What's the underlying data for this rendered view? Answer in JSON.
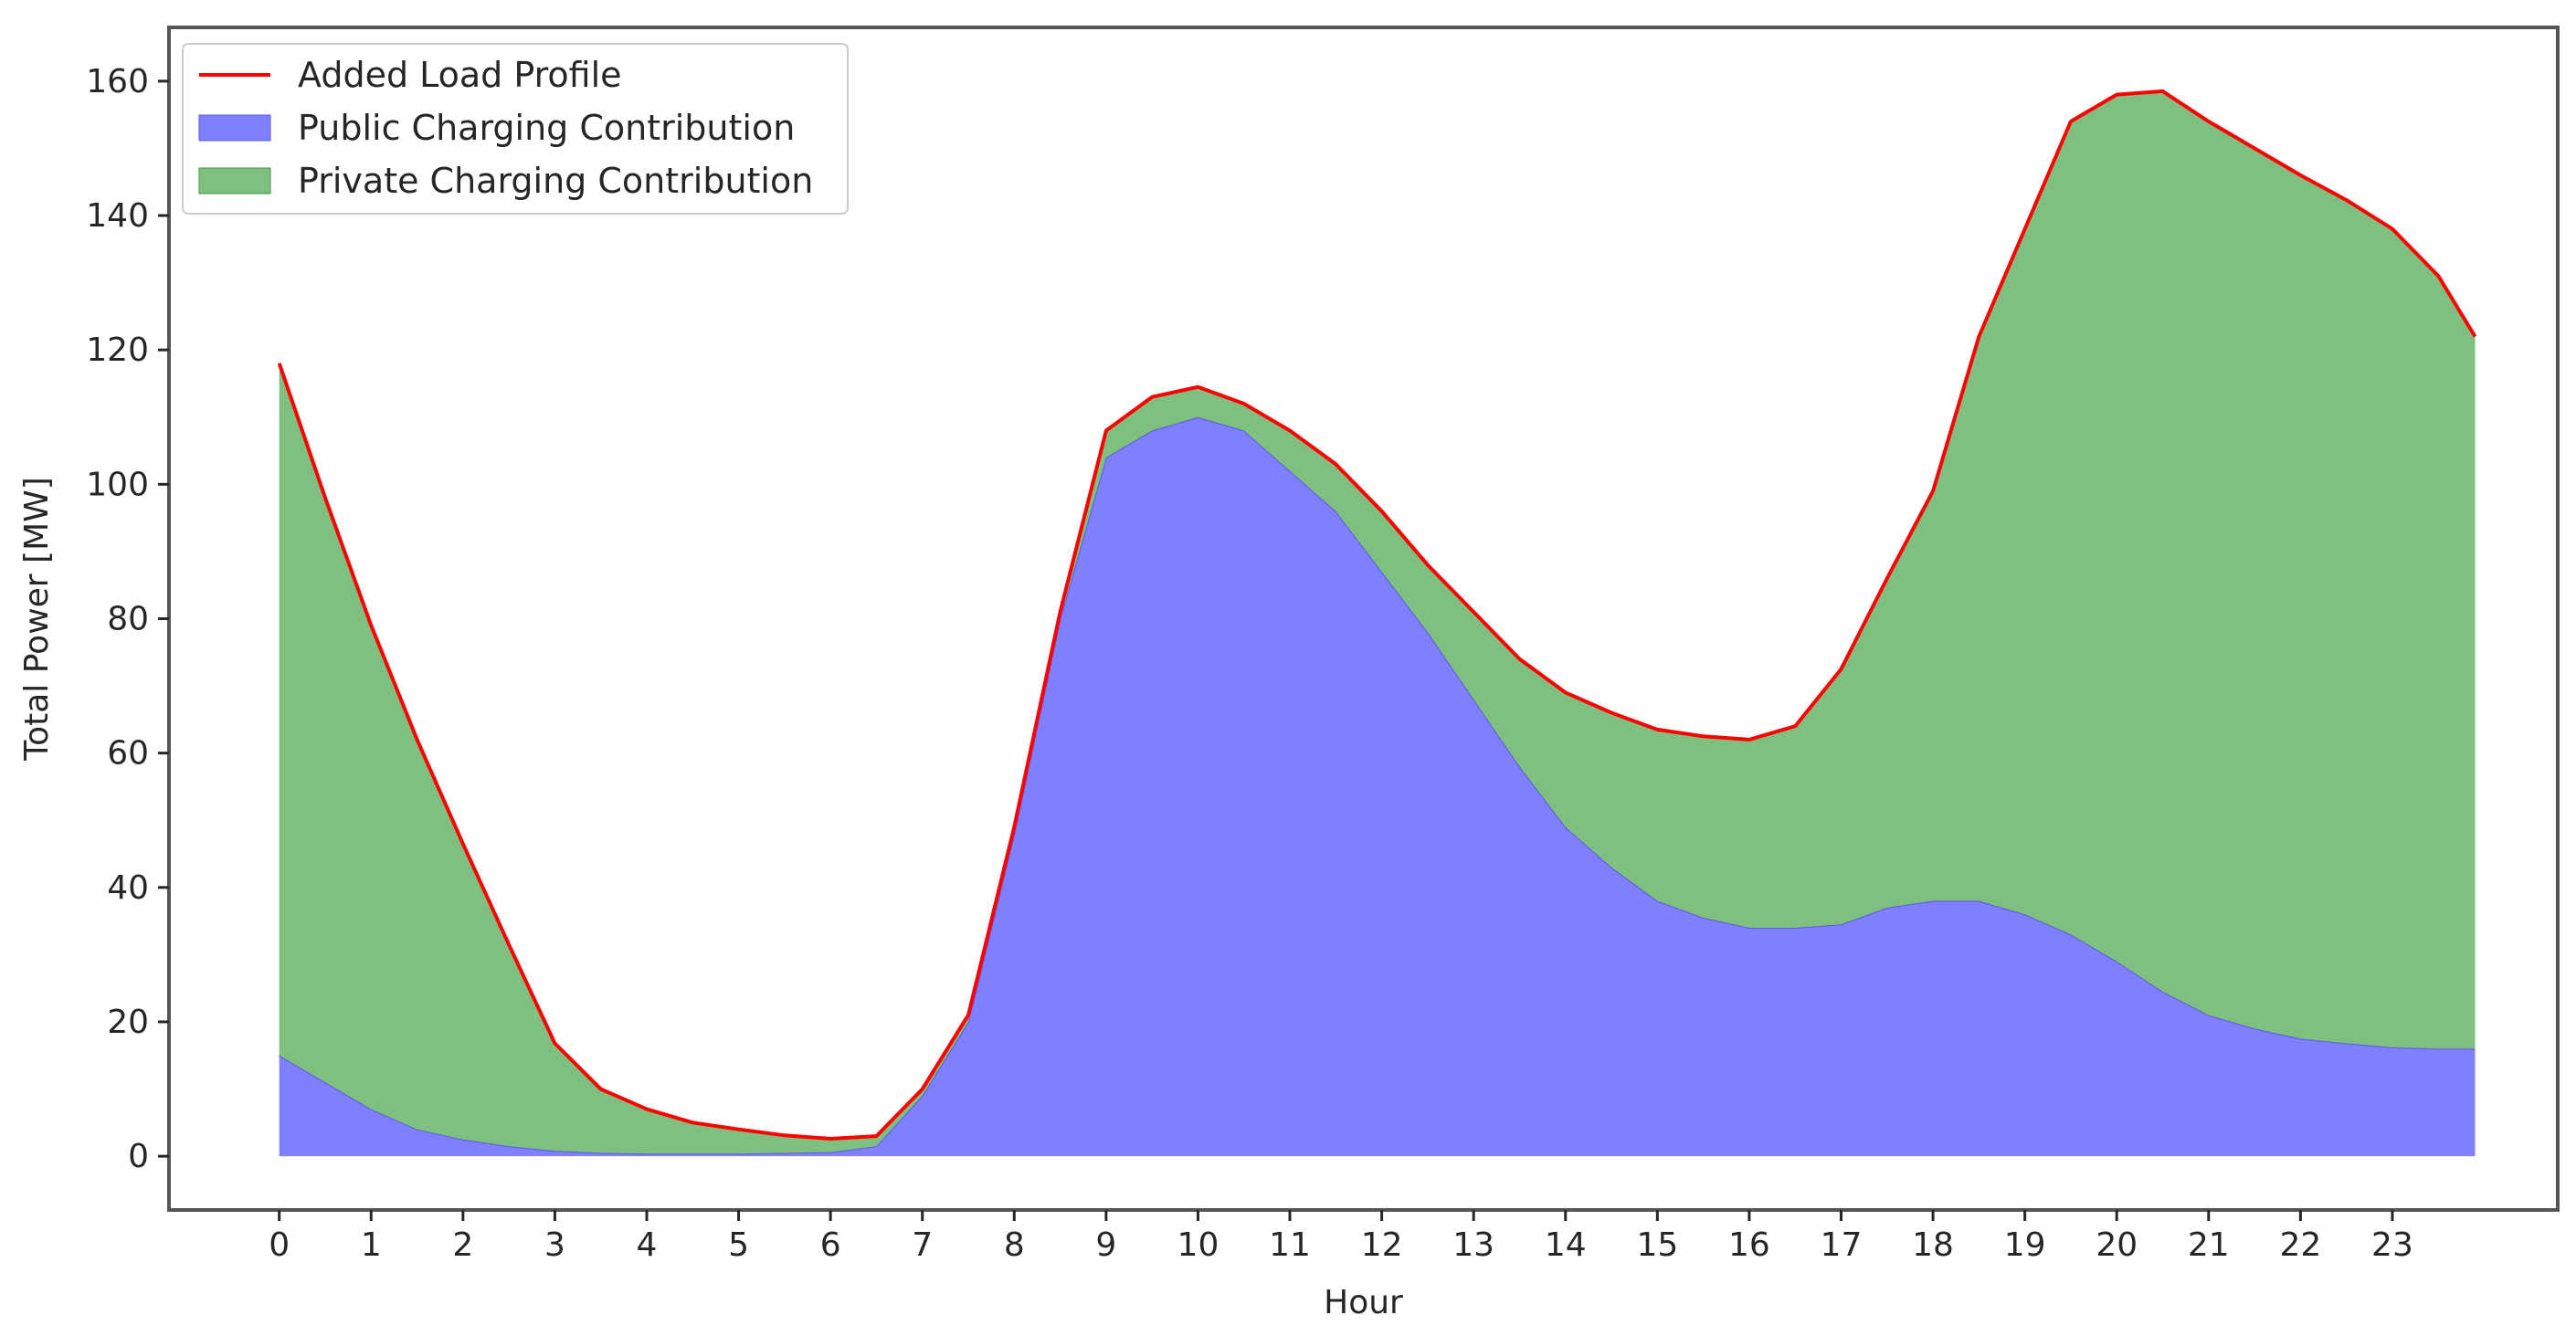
{
  "chart_data": {
    "type": "area",
    "title": "",
    "xlabel": "Hour",
    "ylabel": "Total Power [MW]",
    "xlim": [
      -1.2,
      24.8
    ],
    "ylim": [
      -8,
      168
    ],
    "xticks": [
      0,
      1,
      2,
      3,
      4,
      5,
      6,
      7,
      8,
      9,
      10,
      11,
      12,
      13,
      14,
      15,
      16,
      17,
      18,
      19,
      20,
      21,
      22,
      23
    ],
    "yticks": [
      0,
      20,
      40,
      60,
      80,
      100,
      120,
      140,
      160
    ],
    "grid": false,
    "legend_position": "top-left",
    "stacked": true,
    "x": [
      0,
      0.5,
      1,
      1.5,
      2,
      2.5,
      3,
      3.5,
      4,
      4.5,
      5,
      5.5,
      6,
      6.5,
      7,
      7.5,
      8,
      8.5,
      9,
      9.5,
      10,
      10.5,
      11,
      11.5,
      12,
      12.5,
      13,
      13.5,
      14,
      14.5,
      15,
      15.5,
      16,
      16.5,
      17,
      17.5,
      18,
      18.5,
      19,
      19.5,
      20,
      20.5,
      21,
      21.5,
      22,
      22.5,
      23,
      23.5,
      23.9
    ],
    "series": [
      {
        "name": "Public Charging Contribution",
        "kind": "area",
        "color": "#7f7fff",
        "values": [
          15,
          11,
          7,
          4,
          2.5,
          1.5,
          0.8,
          0.5,
          0.4,
          0.4,
          0.4,
          0.5,
          0.6,
          1.5,
          9,
          20,
          48,
          80,
          104,
          108,
          110,
          108,
          102,
          96,
          87,
          78,
          68,
          58,
          49,
          43,
          38,
          35.5,
          34,
          34,
          34.5,
          37,
          38,
          38,
          36,
          33,
          29,
          24.5,
          21,
          19,
          17.5,
          16.8,
          16.2,
          16,
          16
        ]
      },
      {
        "name": "Private Charging Contribution",
        "kind": "area",
        "color": "#7fbf7f",
        "values": [
          103,
          87,
          72,
          58,
          44,
          30,
          16,
          9.5,
          6.6,
          4.6,
          3.6,
          2.6,
          2,
          1.5,
          1,
          1,
          1,
          1,
          4,
          5,
          4.5,
          4,
          6,
          7,
          9,
          10,
          13,
          16,
          20,
          23,
          25.5,
          27,
          28,
          30,
          38,
          49,
          61,
          84,
          102,
          121,
          129,
          134,
          133,
          131,
          128.5,
          125.5,
          121.8,
          115,
          106
        ]
      },
      {
        "name": "Added Load Profile",
        "kind": "line",
        "color": "#ff0000",
        "values": [
          118,
          98,
          79,
          62,
          46.5,
          31.5,
          16.8,
          10,
          7,
          5,
          4,
          3.1,
          2.6,
          3,
          10,
          21,
          49,
          81,
          108,
          113,
          114.5,
          112,
          108,
          103,
          96,
          88,
          81,
          74,
          69,
          66,
          63.5,
          62.5,
          62,
          64,
          72.5,
          86,
          99,
          122,
          138,
          154,
          158,
          158.5,
          154,
          150,
          146,
          142.3,
          138,
          131,
          122
        ]
      }
    ]
  }
}
